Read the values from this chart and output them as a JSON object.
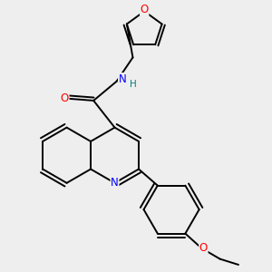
{
  "background_color": "#eeeeee",
  "bond_color": "#000000",
  "bond_width": 1.4,
  "atom_colors": {
    "O": "#ff0000",
    "N": "#0000ff",
    "H": "#008080"
  },
  "font_size": 7.5,
  "figsize": [
    3.0,
    3.0
  ],
  "dpi": 100
}
